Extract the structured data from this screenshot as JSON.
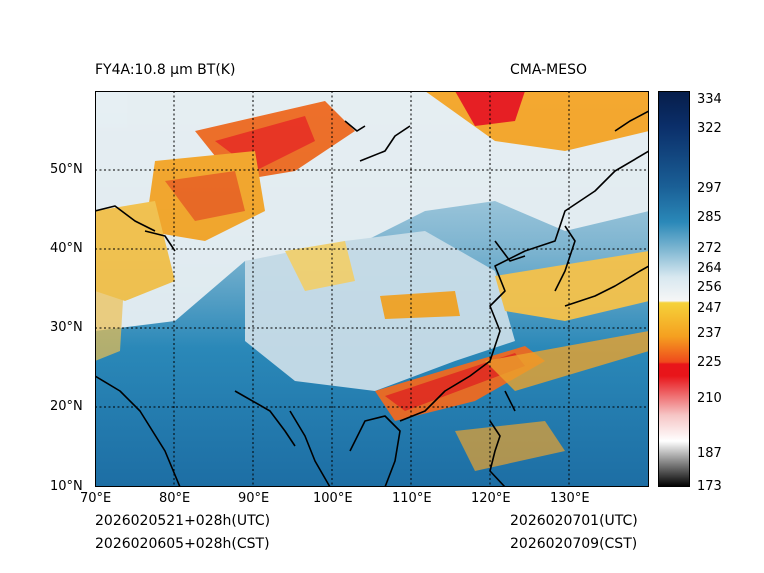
{
  "header": {
    "left_title": "FY4A:10.8 µm BT(K)",
    "right_title": "CMA-MESO"
  },
  "footer": {
    "init_utc": "2026020521+028h(UTC)",
    "init_cst": "2026020605+028h(CST)",
    "valid_utc": "2026020701(UTC)",
    "valid_cst": "2026020709(CST)"
  },
  "map": {
    "lon_labels": [
      "70°E",
      "80°E",
      "90°E",
      "100°E",
      "110°E",
      "120°E",
      "130°E"
    ],
    "lat_labels": [
      "50°N",
      "40°N",
      "30°N",
      "20°N",
      "10°N"
    ],
    "lon_range": [
      70,
      140
    ],
    "lat_range": [
      10,
      60
    ]
  },
  "colorbar": {
    "ticks": [
      "334",
      "322",
      "297",
      "285",
      "272",
      "264",
      "256",
      "247",
      "237",
      "225",
      "210",
      "187",
      "173"
    ],
    "tick_values": [
      334,
      322,
      297,
      285,
      272,
      264,
      256,
      247,
      237,
      225,
      210,
      187,
      173
    ],
    "colors": {
      "top": "#061d4a",
      "mid_blue": "#2a88b8",
      "light": "#e8f0f4",
      "yellow": "#f5c830",
      "orange": "#ef6a20",
      "red": "#e8151a",
      "pink": "#f4b4b4",
      "gray": "#888888",
      "black": "#000000"
    }
  }
}
